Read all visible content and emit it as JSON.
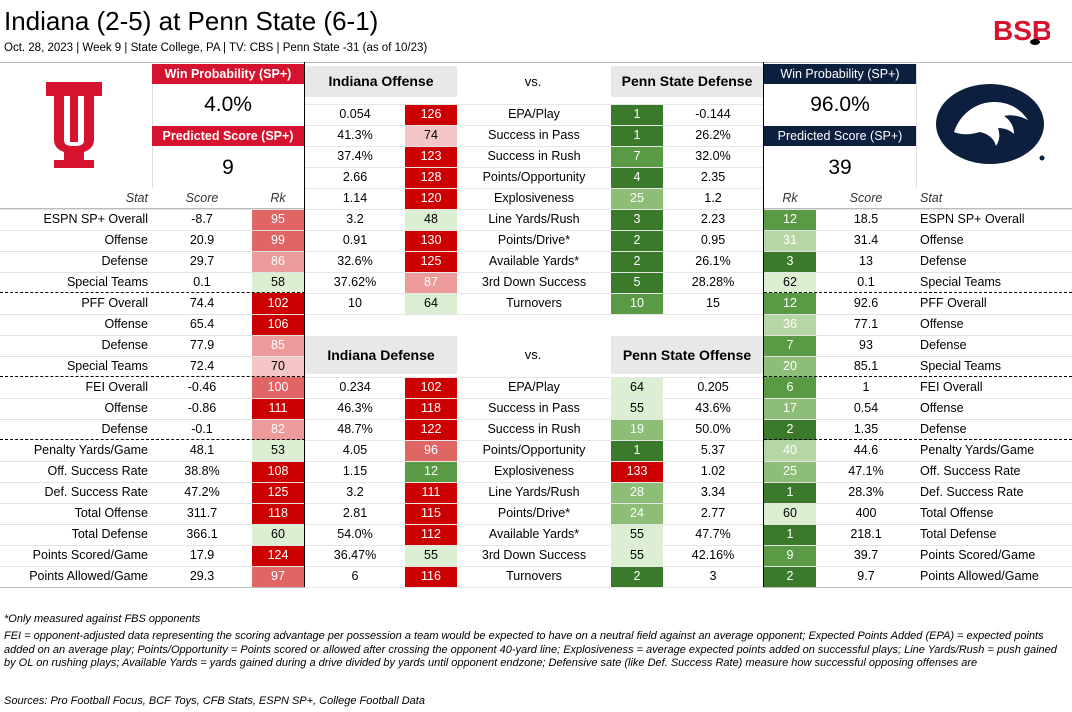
{
  "title": "Indiana (2-5) at Penn State (6-1)",
  "subtitle": "Oct. 28, 2023 | Week 9 | State College, PA | TV: CBS | Penn State -31 (as of 10/23)",
  "brand": "BSB",
  "colors": {
    "red": "#d5132e",
    "navy": "#0c1f3f",
    "indiana": "#990000",
    "pennstate": "#0c1f3f"
  },
  "indiana": {
    "win_label": "Win Probability (SP+)",
    "win": "4.0%",
    "pred_label": "Predicted Score (SP+)",
    "pred": "9",
    "logo": "indiana-trident-logo"
  },
  "pennstate": {
    "win_label": "Win Probability (SP+)",
    "win": "96.0%",
    "pred_label": "Predicted Score (SP+)",
    "pred": "39",
    "logo": "nittany-lion-logo"
  },
  "left_headers": {
    "stat": "Stat",
    "score": "Score",
    "rk": "Rk"
  },
  "right_headers": {
    "rk": "Rk",
    "score": "Score",
    "stat": "Stat"
  },
  "left_rows": [
    {
      "stat": "ESPN SP+ Overall",
      "score": "-8.7",
      "rk": "95"
    },
    {
      "stat": "Offense",
      "score": "20.9",
      "rk": "99"
    },
    {
      "stat": "Defense",
      "score": "29.7",
      "rk": "86"
    },
    {
      "stat": "Special Teams",
      "score": "0.1",
      "rk": "58"
    },
    {
      "stat": "PFF Overall",
      "score": "74.4",
      "rk": "102"
    },
    {
      "stat": "Offense",
      "score": "65.4",
      "rk": "106"
    },
    {
      "stat": "Defense",
      "score": "77.9",
      "rk": "85"
    },
    {
      "stat": "Special Teams",
      "score": "72.4",
      "rk": "70"
    },
    {
      "stat": "FEI Overall",
      "score": "-0.46",
      "rk": "100"
    },
    {
      "stat": "Offense",
      "score": "-0.86",
      "rk": "111"
    },
    {
      "stat": "Defense",
      "score": "-0.1",
      "rk": "82"
    },
    {
      "stat": "Penalty Yards/Game",
      "score": "48.1",
      "rk": "53"
    },
    {
      "stat": "Off. Success Rate",
      "score": "38.8%",
      "rk": "108"
    },
    {
      "stat": "Def. Success Rate",
      "score": "47.2%",
      "rk": "125"
    },
    {
      "stat": "Total Offense",
      "score": "311.7",
      "rk": "118"
    },
    {
      "stat": "Total Defense",
      "score": "366.1",
      "rk": "60"
    },
    {
      "stat": "Points Scored/Game",
      "score": "17.9",
      "rk": "124"
    },
    {
      "stat": "Points Allowed/Game",
      "score": "29.3",
      "rk": "97"
    }
  ],
  "right_rows": [
    {
      "rk": "12",
      "score": "18.5",
      "stat": "ESPN SP+ Overall"
    },
    {
      "rk": "31",
      "score": "31.4",
      "stat": "Offense"
    },
    {
      "rk": "3",
      "score": "13",
      "stat": "Defense"
    },
    {
      "rk": "62",
      "score": "0.1",
      "stat": "Special Teams"
    },
    {
      "rk": "12",
      "score": "92.6",
      "stat": "PFF Overall"
    },
    {
      "rk": "36",
      "score": "77.1",
      "stat": "Offense"
    },
    {
      "rk": "7",
      "score": "93",
      "stat": "Defense"
    },
    {
      "rk": "20",
      "score": "85.1",
      "stat": "Special Teams"
    },
    {
      "rk": "6",
      "score": "1",
      "stat": "FEI Overall"
    },
    {
      "rk": "17",
      "score": "0.54",
      "stat": "Offense"
    },
    {
      "rk": "2",
      "score": "1.35",
      "stat": "Defense"
    },
    {
      "rk": "40",
      "score": "44.6",
      "stat": "Penalty Yards/Game"
    },
    {
      "rk": "25",
      "score": "47.1%",
      "stat": "Off. Success Rate"
    },
    {
      "rk": "1",
      "score": "28.3%",
      "stat": "Def. Success Rate"
    },
    {
      "rk": "60",
      "score": "400",
      "stat": "Total Offense"
    },
    {
      "rk": "1",
      "score": "218.1",
      "stat": "Total Defense"
    },
    {
      "rk": "9",
      "score": "39.7",
      "stat": "Points Scored/Game"
    },
    {
      "rk": "2",
      "score": "9.7",
      "stat": "Points Allowed/Game"
    }
  ],
  "matchup1": {
    "left_title": "Indiana Offense",
    "vs": "vs.",
    "right_title": "Penn State Defense",
    "rows": [
      {
        "lv": "0.054",
        "lr": "126",
        "stat": "EPA/Play",
        "rr": "1",
        "rv": "-0.144"
      },
      {
        "lv": "41.3%",
        "lr": "74",
        "stat": "Success in Pass",
        "rr": "1",
        "rv": "26.2%"
      },
      {
        "lv": "37.4%",
        "lr": "123",
        "stat": "Success in Rush",
        "rr": "7",
        "rv": "32.0%"
      },
      {
        "lv": "2.66",
        "lr": "128",
        "stat": "Points/Opportunity",
        "rr": "4",
        "rv": "2.35"
      },
      {
        "lv": "1.14",
        "lr": "120",
        "stat": "Explosiveness",
        "rr": "25",
        "rv": "1.2"
      },
      {
        "lv": "3.2",
        "lr": "48",
        "stat": "Line Yards/Rush",
        "rr": "3",
        "rv": "2.23"
      },
      {
        "lv": "0.91",
        "lr": "130",
        "stat": "Points/Drive*",
        "rr": "2",
        "rv": "0.95"
      },
      {
        "lv": "32.6%",
        "lr": "125",
        "stat": "Available Yards*",
        "rr": "2",
        "rv": "26.1%"
      },
      {
        "lv": "37.62%",
        "lr": "87",
        "stat": "3rd Down Success",
        "rr": "5",
        "rv": "28.28%"
      },
      {
        "lv": "10",
        "lr": "64",
        "stat": "Turnovers",
        "rr": "10",
        "rv": "15"
      }
    ]
  },
  "matchup2": {
    "left_title": "Indiana Defense",
    "vs": "vs.",
    "right_title": "Penn State Offense",
    "rows": [
      {
        "lv": "0.234",
        "lr": "102",
        "stat": "EPA/Play",
        "rr": "64",
        "rv": "0.205"
      },
      {
        "lv": "46.3%",
        "lr": "118",
        "stat": "Success in Pass",
        "rr": "55",
        "rv": "43.6%"
      },
      {
        "lv": "48.7%",
        "lr": "122",
        "stat": "Success in Rush",
        "rr": "19",
        "rv": "50.0%"
      },
      {
        "lv": "4.05",
        "lr": "96",
        "stat": "Points/Opportunity",
        "rr": "1",
        "rv": "5.37"
      },
      {
        "lv": "1.15",
        "lr": "12",
        "stat": "Explosiveness",
        "rr": "133",
        "rv": "1.02"
      },
      {
        "lv": "3.2",
        "lr": "111",
        "stat": "Line Yards/Rush",
        "rr": "28",
        "rv": "3.34"
      },
      {
        "lv": "2.81",
        "lr": "115",
        "stat": "Points/Drive*",
        "rr": "24",
        "rv": "2.77"
      },
      {
        "lv": "54.0%",
        "lr": "112",
        "stat": "Available Yards*",
        "rr": "55",
        "rv": "47.7%"
      },
      {
        "lv": "36.47%",
        "lr": "55",
        "stat": "3rd Down Success",
        "rr": "55",
        "rv": "42.16%"
      },
      {
        "lv": "6",
        "lr": "116",
        "stat": "Turnovers",
        "rr": "2",
        "rv": "3"
      }
    ]
  },
  "footnote1": "*Only measured against FBS opponents",
  "footnote2": "FEI = opponent-adjusted data representing the scoring advantage per possession a team would be expected to have on a neutral field against an average opponent; Expected Points Added (EPA) = expected points added on an average play; Points/Opportunity = Points scored or allowed after crossing the opponent 40-yard line; Explosiveness = average expected points added on successful plays; Line Yards/Rush = push gained by OL on rushing plays; Available Yards = yards gained during a drive divided by yards until opponent endzone; Defensive sate (like Def. Success Rate) measure how successful opposing offenses are",
  "sources": "Sources:  Pro Football Focus, BCF Toys, CFB Stats, ESPN SP+, College Football Data"
}
